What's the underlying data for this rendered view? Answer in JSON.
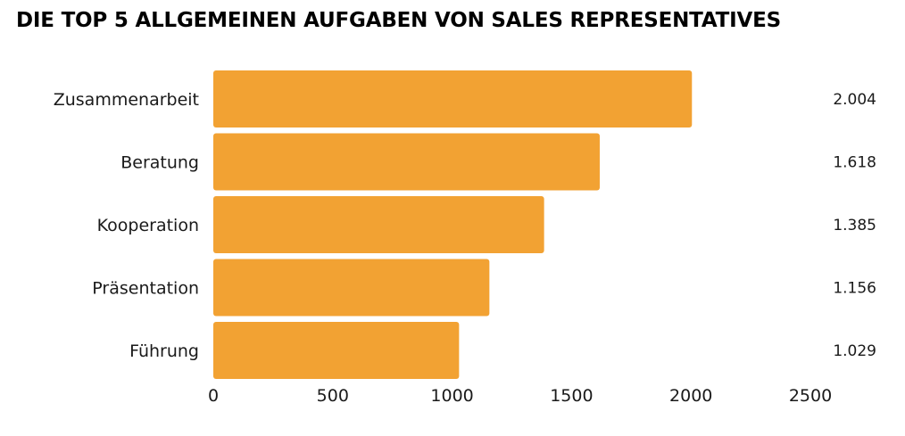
{
  "chart_data": {
    "type": "bar",
    "orientation": "horizontal",
    "title": "DIE TOP 5 ALLGEMEINEN AUFGABEN VON SALES REPRESENTATIVES",
    "categories": [
      "Zusammenarbeit",
      "Beratung",
      "Kooperation",
      "Präsentation",
      "Führung"
    ],
    "values": [
      2004,
      1618,
      1385,
      1156,
      1029
    ],
    "value_labels": [
      "2.004",
      "1.618",
      "1.385",
      "1.156",
      "1.029"
    ],
    "xlim": [
      0,
      2500
    ],
    "xticks": [
      0,
      500,
      1000,
      1500,
      2000,
      2500
    ],
    "grid": false,
    "legend": "none",
    "bar_color": "#F2A233"
  }
}
